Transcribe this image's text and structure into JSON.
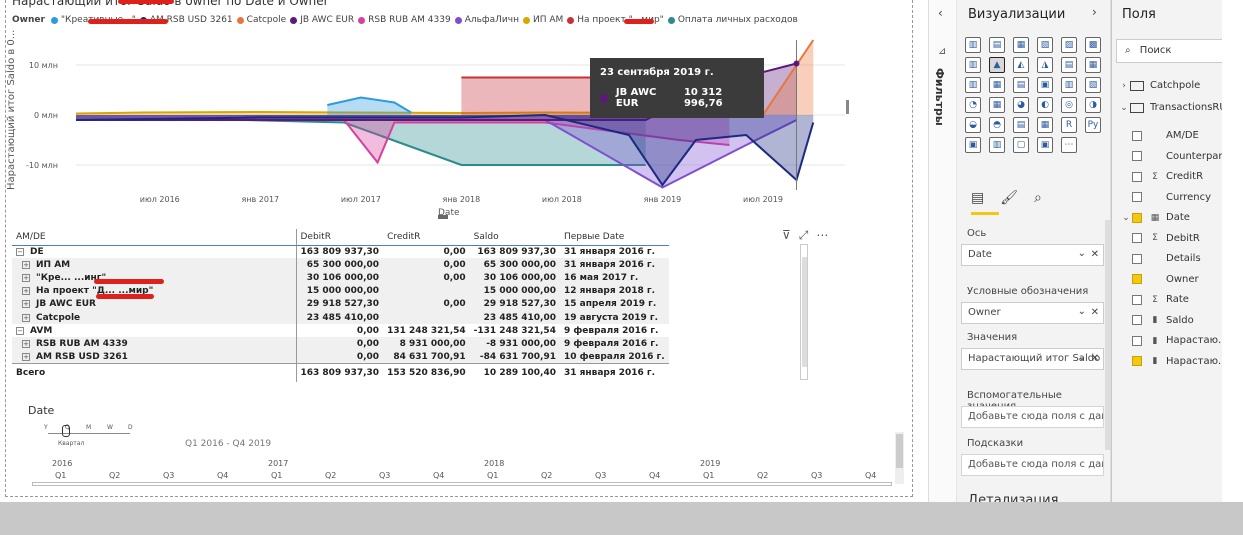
{
  "chart": {
    "title": "Нарастающий итог Saldo в owner по Date и Owner",
    "y_axis_label": "Нарастающий итог Saldo в 0...",
    "x_axis_label": "Date",
    "legend_title": "Owner",
    "legend": [
      {
        "label": "\"Креативные...\"",
        "color": "#2b9be0"
      },
      {
        "label": "AM RSB USD 3261",
        "color": "#1a2a80"
      },
      {
        "label": "Catcpole",
        "color": "#e8763c"
      },
      {
        "label": "JB AWC EUR",
        "color": "#5b1a7a"
      },
      {
        "label": "RSB RUB AM 4339",
        "color": "#d6409e"
      },
      {
        "label": "АльфаЛичн",
        "color": "#7f4fd1"
      },
      {
        "label": "ИП АМ",
        "color": "#d9a600"
      },
      {
        "label": "На проект \"...мир\"",
        "color": "#c8303a"
      },
      {
        "label": "Оплата личных расходов",
        "color": "#2a8c8c"
      }
    ],
    "y_ticks": [
      "10 млн",
      "0 млн",
      "-10 млн"
    ],
    "x_ticks": [
      "июл 2016",
      "янв 2017",
      "июл 2017",
      "янв 2018",
      "июл 2018",
      "янв 2019",
      "июл 2019"
    ]
  },
  "chart_data": {
    "type": "area",
    "title": "Нарастающий итог Saldo в owner по Date и Owner",
    "xlabel": "Date",
    "ylabel": "Нарастающий итог Saldo в 0...",
    "ylim": [
      -15,
      15
    ],
    "y_unit": "млн",
    "series": [
      {
        "name": "ИП АМ",
        "color": "#d9a600",
        "points": [
          [
            "2016-02",
            0.3
          ],
          [
            "2016-06",
            0.5
          ],
          [
            "2017-01",
            0.6
          ],
          [
            "2017-06",
            0.5
          ],
          [
            "2018-01",
            0.4
          ],
          [
            "2018-06",
            0.5
          ],
          [
            "2019-01",
            0.4
          ],
          [
            "2019-05",
            0.4
          ]
        ]
      },
      {
        "name": "\"Креативные...\"",
        "color": "#2b9be0",
        "points": [
          [
            "2017-05",
            2.0
          ],
          [
            "2017-07",
            3.5
          ],
          [
            "2017-09",
            2.5
          ],
          [
            "2017-10",
            0.5
          ]
        ]
      },
      {
        "name": "Оплата личных расходов",
        "color": "#2a8c8c",
        "points": [
          [
            "2016-12",
            -1.0
          ],
          [
            "2017-06",
            -1.5
          ],
          [
            "2018-01",
            -10.0
          ],
          [
            "2018-06",
            -10.0
          ],
          [
            "2018-12",
            -10.0
          ]
        ]
      },
      {
        "name": "На проект \"...мир\"",
        "color": "#c8303a",
        "points": [
          [
            "2018-01",
            7.5
          ],
          [
            "2018-06",
            7.5
          ],
          [
            "2018-12",
            7.5
          ],
          [
            "2019-02",
            7.5
          ]
        ]
      },
      {
        "name": "RSB RUB AM 4339",
        "color": "#d6409e",
        "points": [
          [
            "2016-02",
            -1.0
          ],
          [
            "2017-06",
            -1.0
          ],
          [
            "2017-08",
            -9.5
          ],
          [
            "2017-09",
            -1.5
          ],
          [
            "2018-06",
            -1.5
          ],
          [
            "2019-02",
            -5.0
          ],
          [
            "2019-05",
            -6.0
          ]
        ]
      },
      {
        "name": "АльфаЛичн",
        "color": "#7f4fd1",
        "points": [
          [
            "2016-02",
            -1.0
          ],
          [
            "2018-06",
            -1.0
          ],
          [
            "2019-01",
            -14.5
          ],
          [
            "2019-06",
            -6.0
          ],
          [
            "2019-09",
            -1.0
          ]
        ]
      },
      {
        "name": "JB AWC EUR",
        "color": "#5b1a7a",
        "points": [
          [
            "2016-02",
            -1.0
          ],
          [
            "2017-06",
            -1.0
          ],
          [
            "2018-12",
            -1.0
          ],
          [
            "2019-04",
            6.0
          ],
          [
            "2019-09",
            10.3
          ]
        ]
      },
      {
        "name": "AM RSB USD 3261",
        "color": "#1a2a80",
        "points": [
          [
            "2016-02",
            -1.0
          ],
          [
            "2017-01",
            -0.5
          ],
          [
            "2018-01",
            -0.5
          ],
          [
            "2018-06",
            0.0
          ],
          [
            "2018-11",
            -4.0
          ],
          [
            "2019-01",
            -14.0
          ],
          [
            "2019-03",
            -5.0
          ],
          [
            "2019-06",
            -4.0
          ],
          [
            "2019-09",
            -13.0
          ],
          [
            "2019-10",
            -1.5
          ]
        ]
      },
      {
        "name": "Catcpole",
        "color": "#e8763c",
        "points": [
          [
            "2019-07",
            0.0
          ],
          [
            "2019-10",
            15.0
          ]
        ]
      }
    ]
  },
  "tooltip": {
    "date": "23 сентября 2019 г.",
    "series": "JB AWC EUR",
    "value": "10 312 996,76"
  },
  "table": {
    "headers": [
      "AM/DE",
      "DebitR",
      "CreditR",
      "Saldo",
      "Первые Date"
    ],
    "rows": [
      {
        "level": 0,
        "name": "DE",
        "debit": "163 809 937,30",
        "credit": "0,00",
        "saldo": "163 809 937,30",
        "date": "31 января 2016 г."
      },
      {
        "level": 1,
        "name": "ИП АМ",
        "debit": "65 300 000,00",
        "credit": "0,00",
        "saldo": "65 300 000,00",
        "date": "31 января 2016 г."
      },
      {
        "level": 1,
        "name": "\"Кре... ...инг\"",
        "debit": "30 106 000,00",
        "credit": "0,00",
        "saldo": "30 106 000,00",
        "date": "16 мая 2017 г."
      },
      {
        "level": 1,
        "name": "На проект \"Д... ...мир\"",
        "debit": "15 000 000,00",
        "credit": "",
        "saldo": "15 000 000,00",
        "date": "12 января 2018 г."
      },
      {
        "level": 1,
        "name": "JB AWC EUR",
        "debit": "29 918 527,30",
        "credit": "0,00",
        "saldo": "29 918 527,30",
        "date": "15 апреля 2019 г."
      },
      {
        "level": 1,
        "name": "Catcpole",
        "debit": "23 485 410,00",
        "credit": "",
        "saldo": "23 485 410,00",
        "date": "19 августа 2019 г."
      },
      {
        "level": 0,
        "name": "AVM",
        "debit": "0,00",
        "credit": "131 248 321,54",
        "saldo": "-131 248 321,54",
        "date": "9 февраля 2016 г."
      },
      {
        "level": 1,
        "name": "RSB RUB AM 4339",
        "debit": "0,00",
        "credit": "8 931 000,00",
        "saldo": "-8 931 000,00",
        "date": "9 февраля 2016 г."
      },
      {
        "level": 1,
        "name": "AM RSB USD 3261",
        "debit": "0,00",
        "credit": "84 631 700,91",
        "saldo": "-84 631 700,91",
        "date": "10 февраля 2016 г."
      }
    ],
    "total": {
      "name": "Всего",
      "debit": "163 809 937,30",
      "credit": "153 520 836,90",
      "saldo": "10 289 100,40",
      "date": "31 января 2016 г."
    }
  },
  "slicer": {
    "title": "Date",
    "levels": [
      "Y",
      "Q",
      "M",
      "W",
      "D"
    ],
    "level_name": "Квартал",
    "range": "Q1 2016 - Q4 2019",
    "years": [
      "2016",
      "2017",
      "2018",
      "2019"
    ],
    "quarters": [
      "Q1",
      "Q2",
      "Q3",
      "Q4",
      "Q1",
      "Q2",
      "Q3",
      "Q4",
      "Q1",
      "Q2",
      "Q3",
      "Q4",
      "Q1",
      "Q2",
      "Q3",
      "Q4"
    ]
  },
  "filters_pane": {
    "label": "Фильтры"
  },
  "viz_pane": {
    "title": "Визуализации",
    "wells": [
      {
        "label": "Ось",
        "value": "Date"
      },
      {
        "label": "Условные обозначения",
        "value": "Owner"
      },
      {
        "label": "Значения",
        "value": "Нарастающий итог Saldo"
      },
      {
        "label": "Вспомогательные значения",
        "value": "Добавьте сюда поля с дан..."
      },
      {
        "label": "Подсказки",
        "value": "Добавьте сюда поля с дан..."
      }
    ],
    "detail": "Детализация"
  },
  "fields_pane": {
    "title": "Поля",
    "search_placeholder": "Поиск",
    "tables": [
      {
        "name": "Catchpole"
      },
      {
        "name": "TransactionsRU"
      }
    ],
    "fields": [
      {
        "name": "AM/DE",
        "checked": false,
        "icon": ""
      },
      {
        "name": "Counterpar",
        "checked": false,
        "icon": ""
      },
      {
        "name": "CreditR",
        "checked": false,
        "icon": "Σ"
      },
      {
        "name": "Currency",
        "checked": false,
        "icon": ""
      },
      {
        "name": "Date",
        "checked": true,
        "icon": "calendar-icon"
      },
      {
        "name": "DebitR",
        "checked": false,
        "icon": "Σ"
      },
      {
        "name": "Details",
        "checked": false,
        "icon": ""
      },
      {
        "name": "Owner",
        "checked": true,
        "icon": ""
      },
      {
        "name": "Rate",
        "checked": false,
        "icon": "Σ"
      },
      {
        "name": "Saldo",
        "checked": false,
        "icon": "measure-icon"
      },
      {
        "name": "Нарастаю...",
        "checked": false,
        "icon": "measure-icon"
      },
      {
        "name": "Нарастаю...",
        "checked": true,
        "icon": "measure-icon"
      }
    ]
  }
}
